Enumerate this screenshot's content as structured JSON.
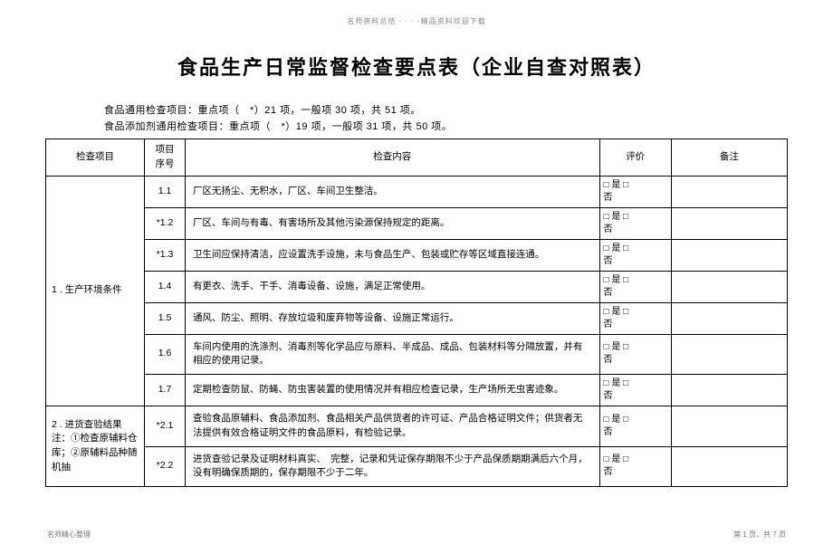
{
  "header": {
    "top_text": "名师资料总结 · · · ·精品资料欢迎下载"
  },
  "title": "食品生产日常监督检查要点表（企业自查对照表）",
  "subtitles": {
    "line1": "食品通用检查项目：重点项（　*）21 项，一般项  30 项，共  51 项。",
    "line2": "食品添加剂通用检查项目：重点项（　*）19 项，一般项  31 项，共  50 项。"
  },
  "table": {
    "headers": {
      "category": "检查项目",
      "seq": "项目\n序号",
      "content": "检查内容",
      "eval": "评价",
      "remark": "备注"
    },
    "eval_text": "□  是 □\n否",
    "rows": [
      {
        "category": "1 . 生产环境条件",
        "category_rowspan": 7,
        "seq": "1.1",
        "content": "厂区无扬尘、无积水，厂区、车间卫生整洁。"
      },
      {
        "seq": "*1.2",
        "content": "厂区、车间与有毒、有害场所及其他污染源保持规定的距离。"
      },
      {
        "seq": "*1.3",
        "content": "卫生间应保持清洁，应设置洗手设施，未与食品生产、包装或贮存等区域直接连通。"
      },
      {
        "seq": "1.4",
        "content": "有更衣、洗手、干手、消毒设备、设施，满足正常使用。"
      },
      {
        "seq": "1.5",
        "content": "通风、防尘、照明、存放垃圾和废弃物等设备、设施正常运行。"
      },
      {
        "seq": "1.6",
        "content": "车间内使用的洗涤剂、消毒剂等化学品应与原料、半成品、成品、包装材料等分隔放置，并有相应的使用记录。"
      },
      {
        "seq": "1.7",
        "content": "定期检查防鼠、防蝇、防虫害装置的使用情况并有相应检查记录，生产场所无虫害迹象。"
      },
      {
        "category": "2 . 进货查验结果\n注：①检查原辅料仓库；②原辅料品种随机抽",
        "category_rowspan": 2,
        "seq": "*2.1",
        "content": "查验食品原辅料、食品添加剂、食品相关产品供货者的许可证、产品合格证明文件；供货者无法提供有效合格证明文件的食品原料，有检验记录。"
      },
      {
        "seq": "*2.2",
        "content": "进货查验记录及证明材料真实、　完整，记录和凭证保存期限不少于产品保质期期满后六个月，没有明确保质期的，保存期限不少于二年。"
      }
    ]
  },
  "footer": {
    "left": "名师精心整理",
    "right": "第 1 页，共 7 页"
  }
}
